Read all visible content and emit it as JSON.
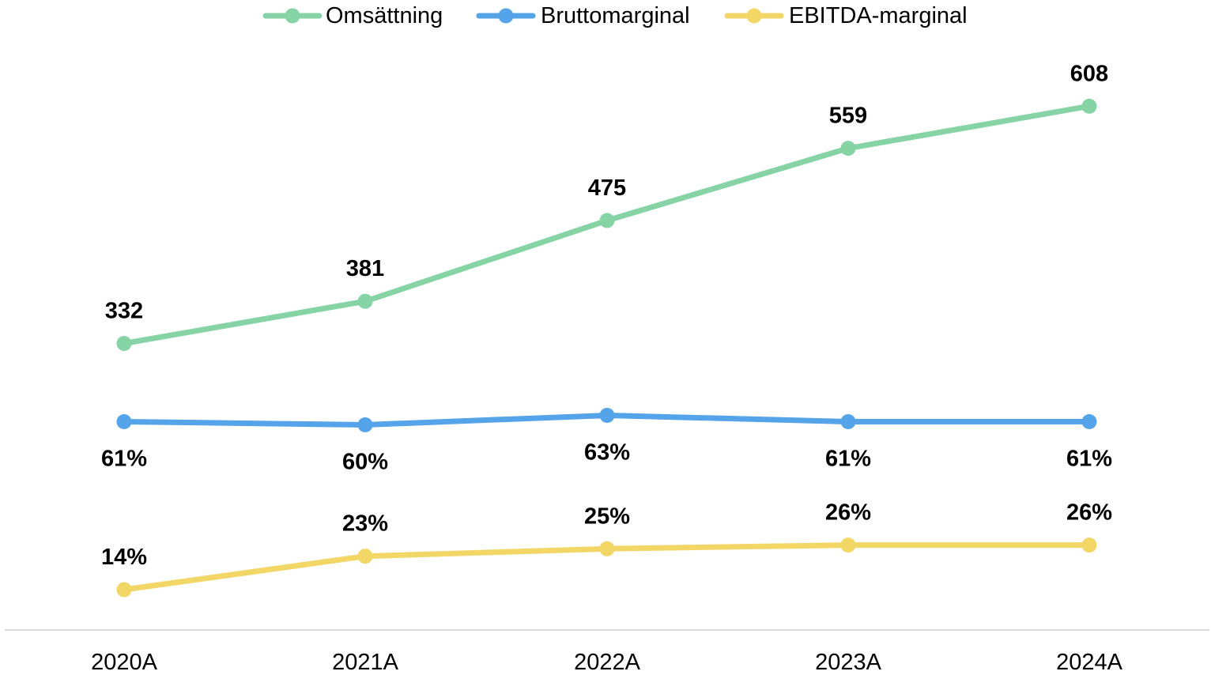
{
  "chart_data": {
    "type": "line",
    "title": "",
    "xlabel": "",
    "ylabel": "",
    "categories": [
      "2020A",
      "2021A",
      "2022A",
      "2023A",
      "2024A"
    ],
    "legend_position": "top",
    "grid": false,
    "series": [
      {
        "key": "revenue",
        "name": "Omsättning",
        "color": "#86d3a6",
        "values": [
          332,
          381,
          475,
          559,
          608
        ],
        "labels": [
          "332",
          "381",
          "475",
          "559",
          "608"
        ],
        "label_position": "above"
      },
      {
        "key": "gross",
        "name": "Bruttomarginal",
        "color": "#55a4ea",
        "values": [
          61,
          60,
          63,
          61,
          61
        ],
        "labels": [
          "61%",
          "60%",
          "63%",
          "61%",
          "61%"
        ],
        "label_position": "below"
      },
      {
        "key": "ebitda",
        "name": "EBITDA-marginal",
        "color": "#f2d666",
        "values": [
          14,
          23,
          25,
          26,
          26
        ],
        "labels": [
          "14%",
          "23%",
          "25%",
          "26%",
          "26%"
        ],
        "label_position": "above"
      }
    ]
  }
}
